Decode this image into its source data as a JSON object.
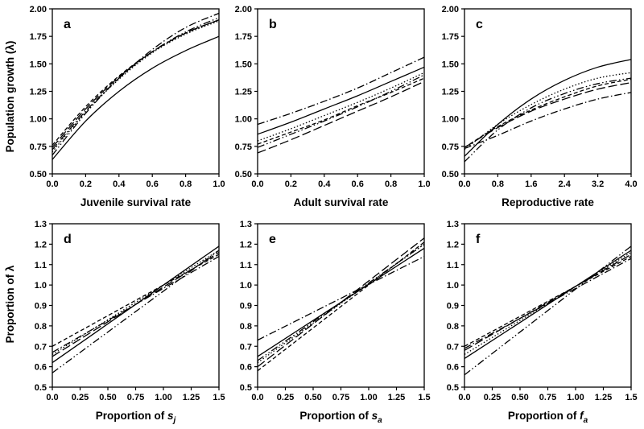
{
  "figure": {
    "ylabel_top": "Population growth (λ)",
    "ylabel_bottom": "Proportion of λ"
  },
  "chart_data": [
    {
      "type": "line",
      "panel": "a",
      "letter": "a",
      "xlabel": "Juvenile survival rate",
      "xlabel_main": "Juvenile survival rate",
      "xlabel_sub": "",
      "xlim": [
        0,
        1
      ],
      "ylim": [
        0.5,
        2.0
      ],
      "xticks": [
        "0.0",
        "0.2",
        "0.4",
        "0.6",
        "0.8",
        "1.0"
      ],
      "yticks": [
        "0.50",
        "0.75",
        "1.00",
        "1.25",
        "1.50",
        "1.75",
        "2.00"
      ],
      "x": [
        0,
        0.2,
        0.4,
        0.6,
        0.8,
        1.0
      ],
      "series": [
        {
          "style": "solid",
          "values": [
            0.63,
            0.98,
            1.25,
            1.46,
            1.62,
            1.75
          ]
        },
        {
          "style": "dotted",
          "values": [
            0.7,
            1.06,
            1.36,
            1.6,
            1.77,
            1.89
          ]
        },
        {
          "style": "dashed",
          "values": [
            0.76,
            1.11,
            1.39,
            1.61,
            1.78,
            1.9
          ]
        },
        {
          "style": "long-dash",
          "values": [
            0.74,
            1.09,
            1.38,
            1.61,
            1.78,
            1.9
          ]
        },
        {
          "style": "dash-dot",
          "values": [
            0.72,
            1.07,
            1.37,
            1.63,
            1.83,
            1.96
          ]
        },
        {
          "style": "dash-dot-dot",
          "values": [
            0.67,
            1.05,
            1.37,
            1.61,
            1.79,
            1.92
          ]
        }
      ]
    },
    {
      "type": "line",
      "panel": "b",
      "letter": "b",
      "xlabel": "Adult survival rate",
      "xlabel_main": "Adult survival rate",
      "xlabel_sub": "",
      "xlim": [
        0,
        1
      ],
      "ylim": [
        0.5,
        2.0
      ],
      "xticks": [
        "0.0",
        "0.2",
        "0.4",
        "0.6",
        "0.8",
        "1.0"
      ],
      "yticks": [
        "0.50",
        "0.75",
        "1.00",
        "1.25",
        "1.50",
        "1.75",
        "2.00"
      ],
      "x": [
        0,
        0.2,
        0.4,
        0.6,
        0.8,
        1.0
      ],
      "series": [
        {
          "style": "solid",
          "values": [
            0.86,
            0.97,
            1.09,
            1.21,
            1.34,
            1.47
          ]
        },
        {
          "style": "dotted",
          "values": [
            0.8,
            0.91,
            1.03,
            1.15,
            1.28,
            1.42
          ]
        },
        {
          "style": "dashed",
          "values": [
            0.77,
            0.88,
            0.99,
            1.12,
            1.24,
            1.37
          ]
        },
        {
          "style": "long-dash",
          "values": [
            0.69,
            0.81,
            0.94,
            1.07,
            1.2,
            1.34
          ]
        },
        {
          "style": "dash-dot",
          "values": [
            0.95,
            1.05,
            1.16,
            1.28,
            1.42,
            1.56
          ]
        },
        {
          "style": "dash-dot-dot",
          "values": [
            0.74,
            0.86,
            0.98,
            1.11,
            1.25,
            1.4
          ]
        }
      ]
    },
    {
      "type": "line",
      "panel": "c",
      "letter": "c",
      "xlabel": "Reproductive rate",
      "xlabel_main": "Reproductive rate",
      "xlabel_sub": "",
      "xlim": [
        0,
        4
      ],
      "ylim": [
        0.5,
        2.0
      ],
      "xticks": [
        "0.0",
        "0.8",
        "1.6",
        "2.4",
        "3.2",
        "4.0"
      ],
      "yticks": [
        "0.50",
        "0.75",
        "1.00",
        "1.25",
        "1.50",
        "1.75",
        "2.00"
      ],
      "x": [
        0,
        0.8,
        1.6,
        2.4,
        3.2,
        4.0
      ],
      "series": [
        {
          "style": "solid",
          "values": [
            0.66,
            0.95,
            1.18,
            1.35,
            1.47,
            1.54
          ]
        },
        {
          "style": "dotted",
          "values": [
            0.72,
            0.95,
            1.13,
            1.27,
            1.37,
            1.42
          ]
        },
        {
          "style": "dashed",
          "values": [
            0.74,
            0.93,
            1.08,
            1.2,
            1.3,
            1.36
          ]
        },
        {
          "style": "long-dash",
          "values": [
            0.74,
            0.92,
            1.07,
            1.18,
            1.27,
            1.33
          ]
        },
        {
          "style": "dash-dot",
          "values": [
            0.73,
            0.85,
            0.98,
            1.09,
            1.18,
            1.24
          ]
        },
        {
          "style": "dash-dot-dot",
          "values": [
            0.61,
            0.9,
            1.1,
            1.23,
            1.32,
            1.37
          ]
        }
      ]
    },
    {
      "type": "line",
      "panel": "d",
      "letter": "d",
      "xlabel": "Proportion of sj",
      "xlabel_main": "Proportion of ",
      "xlabel_sub": "j",
      "xlim": [
        0,
        1.5
      ],
      "ylim": [
        0.5,
        1.3
      ],
      "xticks": [
        "0.0",
        "0.25",
        "0.50",
        "0.75",
        "1.00",
        "1.25",
        "1.5"
      ],
      "yticks": [
        "0.5",
        "0.6",
        "0.7",
        "0.8",
        "0.9",
        "1.0",
        "1.1",
        "1.2",
        "1.3"
      ],
      "x": [
        0,
        1.5
      ],
      "series": [
        {
          "style": "solid",
          "values": [
            0.62,
            1.19
          ]
        },
        {
          "style": "dotted",
          "values": [
            0.66,
            1.17
          ]
        },
        {
          "style": "dashed",
          "values": [
            0.7,
            1.15
          ]
        },
        {
          "style": "long-dash",
          "values": [
            0.65,
            1.16
          ]
        },
        {
          "style": "dash-dot",
          "values": [
            0.67,
            1.14
          ]
        },
        {
          "style": "dash-dot-dot",
          "values": [
            0.57,
            1.17
          ]
        }
      ]
    },
    {
      "type": "line",
      "panel": "e",
      "letter": "e",
      "xlabel": "Proportion of sa",
      "xlabel_main": "Proportion of ",
      "xlabel_sub": "a",
      "xlim": [
        0,
        1.5
      ],
      "ylim": [
        0.5,
        1.3
      ],
      "xticks": [
        "0.0",
        "0.25",
        "0.50",
        "0.75",
        "1.00",
        "1.25",
        "1.5"
      ],
      "yticks": [
        "0.5",
        "0.6",
        "0.7",
        "0.8",
        "0.9",
        "1.0",
        "1.1",
        "1.2",
        "1.3"
      ],
      "x": [
        0,
        1.5
      ],
      "series": [
        {
          "style": "solid",
          "values": [
            0.65,
            1.18
          ]
        },
        {
          "style": "dotted",
          "values": [
            0.62,
            1.2
          ]
        },
        {
          "style": "dashed",
          "values": [
            0.58,
            1.21
          ]
        },
        {
          "style": "long-dash",
          "values": [
            0.6,
            1.23
          ]
        },
        {
          "style": "dash-dot",
          "values": [
            0.73,
            1.14
          ]
        },
        {
          "style": "dash-dot-dot",
          "values": [
            0.63,
            1.2
          ]
        }
      ]
    },
    {
      "type": "line",
      "panel": "f",
      "letter": "f",
      "xlabel": "Proportion of fa",
      "xlabel_main": "Proportion of ",
      "xlabel_sub": "a",
      "xlim": [
        0,
        1.5
      ],
      "ylim": [
        0.5,
        1.3
      ],
      "xticks": [
        "0.0",
        "0.25",
        "0.50",
        "0.75",
        "1.00",
        "1.25",
        "1.5"
      ],
      "yticks": [
        "0.5",
        "0.6",
        "0.7",
        "0.8",
        "0.9",
        "1.0",
        "1.1",
        "1.2",
        "1.3"
      ],
      "x": [
        0,
        1.5
      ],
      "series": [
        {
          "style": "solid",
          "values": [
            0.64,
            1.17
          ]
        },
        {
          "style": "dotted",
          "values": [
            0.66,
            1.16
          ]
        },
        {
          "style": "dashed",
          "values": [
            0.7,
            1.14
          ]
        },
        {
          "style": "long-dash",
          "values": [
            0.68,
            1.15
          ]
        },
        {
          "style": "dash-dot",
          "values": [
            0.69,
            1.13
          ]
        },
        {
          "style": "dash-dot-dot",
          "values": [
            0.56,
            1.19
          ]
        }
      ]
    }
  ]
}
